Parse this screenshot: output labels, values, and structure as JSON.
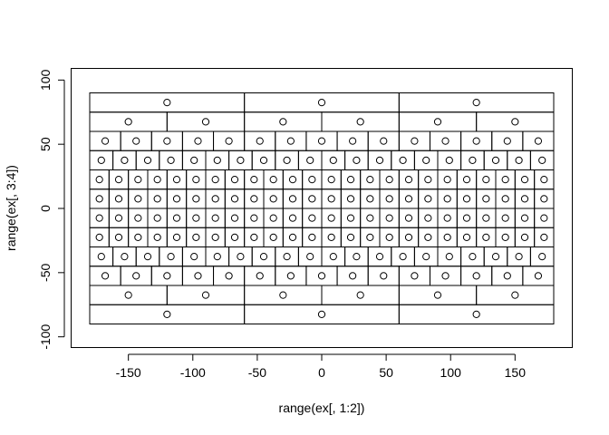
{
  "chart_data": {
    "type": "scatter",
    "title": "",
    "xlabel": "range(ex[, 1:2])",
    "ylabel": "range(ex[, 3:4])",
    "xlim": [
      -180,
      180
    ],
    "ylim": [
      -90,
      90
    ],
    "x_ticks": [
      -150,
      -100,
      -50,
      0,
      50,
      100,
      150
    ],
    "x_tick_labels": [
      "-150",
      "-100",
      "-50",
      "0",
      "50",
      "100",
      "150"
    ],
    "y_ticks": [
      -100,
      -50,
      0,
      50,
      100
    ],
    "y_tick_labels": [
      "-100",
      "-50",
      "0",
      "50",
      "100"
    ],
    "grid": false,
    "rows": [
      {
        "y": [
          75,
          90
        ],
        "n": 3
      },
      {
        "y": [
          60,
          75
        ],
        "n": 6
      },
      {
        "y": [
          45,
          60
        ],
        "n": 15
      },
      {
        "y": [
          30,
          45
        ],
        "n": 20
      },
      {
        "y": [
          15,
          30
        ],
        "n": 24
      },
      {
        "y": [
          0,
          15
        ],
        "n": 24
      },
      {
        "y": [
          -15,
          0
        ],
        "n": 24
      },
      {
        "y": [
          -30,
          -15
        ],
        "n": 24
      },
      {
        "y": [
          -45,
          -30
        ],
        "n": 20
      },
      {
        "y": [
          -60,
          -45
        ],
        "n": 15
      },
      {
        "y": [
          -75,
          -60
        ],
        "n": 6
      },
      {
        "y": [
          -90,
          -75
        ],
        "n": 3
      }
    ]
  }
}
